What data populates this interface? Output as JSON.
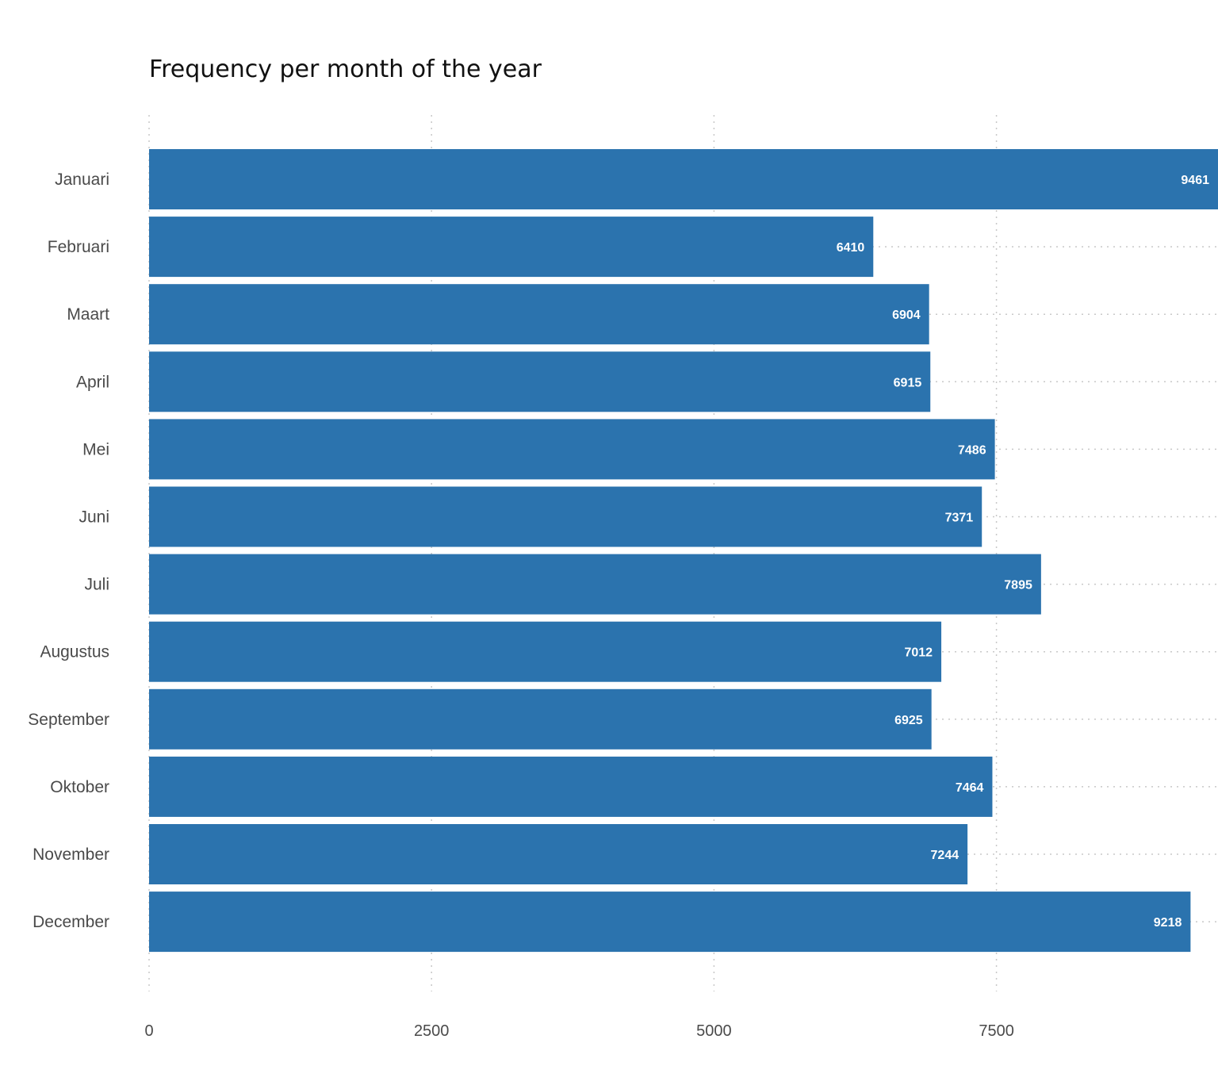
{
  "chart_data": {
    "type": "bar",
    "orientation": "horizontal",
    "title": "Frequency per month of the year",
    "xlabel": "",
    "ylabel": "",
    "categories": [
      "Januari",
      "Februari",
      "Maart",
      "April",
      "Mei",
      "Juni",
      "Juli",
      "Augustus",
      "September",
      "Oktober",
      "November",
      "December"
    ],
    "values": [
      9461,
      6410,
      6904,
      6915,
      7486,
      7371,
      7895,
      7012,
      6925,
      7464,
      7244,
      9218
    ],
    "xlim": [
      0,
      9461
    ],
    "xticks": [
      0,
      2500,
      5000,
      7500
    ],
    "grid": true,
    "grid_style": "dotted",
    "data_labels": "inside-end",
    "colors": {
      "bar": "#2b73ae",
      "grid": "#c8c8c8",
      "value_label": "#ffffff",
      "axis_text": "#4a4a4a",
      "title": "#111111"
    }
  }
}
